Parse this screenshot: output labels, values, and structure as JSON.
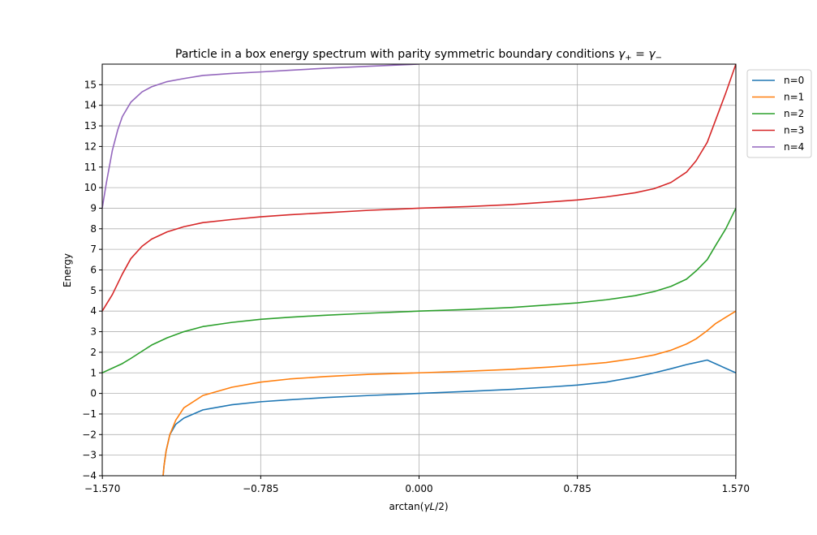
{
  "chart_data": {
    "type": "line",
    "title_main": "Particle in a box energy spectrum with parity symmetric boundary conditions ",
    "title_math": "γ+ = γ−",
    "xlabel_prefix": "arctan(",
    "xlabel_var": "γL",
    "xlabel_suffix": "/2)",
    "ylabel": "Energy",
    "xlim": [
      -1.5708,
      1.5708
    ],
    "ylim": [
      -4,
      16
    ],
    "x_ticks": [
      -1.57,
      -0.785,
      0.0,
      0.785,
      1.57
    ],
    "x_tick_labels": [
      "−1.570",
      "−0.785",
      "0.000",
      "0.785",
      "1.570"
    ],
    "y_ticks": [
      -4,
      -3,
      -2,
      -1,
      0,
      1,
      2,
      3,
      4,
      5,
      6,
      7,
      8,
      9,
      10,
      11,
      12,
      13,
      14,
      15
    ],
    "y_tick_labels": [
      "−4",
      "−3",
      "−2",
      "−1",
      "0",
      "1",
      "2",
      "3",
      "4",
      "5",
      "6",
      "7",
      "8",
      "9",
      "10",
      "11",
      "12",
      "13",
      "14",
      "15"
    ],
    "grid": true,
    "legend_position": "outside-top-right",
    "series": [
      {
        "name": "n=0",
        "color": "#1f77b4",
        "points": [
          [
            -1.2737,
            -4.5
          ],
          [
            -1.2642,
            -3.5
          ],
          [
            -1.2541,
            -2.8
          ],
          [
            -1.2355,
            -2.0
          ],
          [
            -1.2062,
            -1.5
          ],
          [
            -1.1659,
            -1.2
          ],
          [
            -1.0715,
            -0.8
          ],
          [
            -0.9281,
            -0.55
          ],
          [
            -0.7854,
            -0.405
          ],
          [
            -0.6435,
            -0.31
          ],
          [
            -0.4636,
            -0.2
          ],
          [
            -0.245,
            -0.1
          ],
          [
            0.0,
            0.0
          ],
          [
            0.245,
            0.1
          ],
          [
            0.4636,
            0.2
          ],
          [
            0.6435,
            0.31
          ],
          [
            0.7854,
            0.405
          ],
          [
            0.9281,
            0.55
          ],
          [
            1.0715,
            0.8
          ],
          [
            1.1659,
            1.0
          ],
          [
            1.249,
            1.2
          ],
          [
            1.3258,
            1.4
          ],
          [
            1.3734,
            1.5
          ],
          [
            1.4289,
            1.62
          ],
          [
            1.5708,
            1.0
          ]
        ]
      },
      {
        "name": "n=1",
        "color": "#ff7f0e",
        "points": [
          [
            -1.2737,
            -4.5
          ],
          [
            -1.2642,
            -3.5
          ],
          [
            -1.2541,
            -2.8
          ],
          [
            -1.2355,
            -2.0
          ],
          [
            -1.2062,
            -1.3
          ],
          [
            -1.1659,
            -0.7
          ],
          [
            -1.0715,
            -0.1
          ],
          [
            -0.9281,
            0.3
          ],
          [
            -0.7854,
            0.55
          ],
          [
            -0.6435,
            0.7
          ],
          [
            -0.4636,
            0.82
          ],
          [
            -0.245,
            0.93
          ],
          [
            0.0,
            1.0
          ],
          [
            0.245,
            1.08
          ],
          [
            0.4636,
            1.17
          ],
          [
            0.6435,
            1.28
          ],
          [
            0.7854,
            1.38
          ],
          [
            0.9281,
            1.5
          ],
          [
            1.0715,
            1.7
          ],
          [
            1.1659,
            1.87
          ],
          [
            1.249,
            2.1
          ],
          [
            1.3258,
            2.4
          ],
          [
            1.3734,
            2.65
          ],
          [
            1.4289,
            3.05
          ],
          [
            1.4711,
            3.4
          ],
          [
            1.5708,
            4.0
          ]
        ]
      },
      {
        "name": "n=2",
        "color": "#2ca02c",
        "points": [
          [
            -1.5708,
            1.0
          ],
          [
            -1.4711,
            1.45
          ],
          [
            -1.4289,
            1.7
          ],
          [
            -1.3734,
            2.05
          ],
          [
            -1.3258,
            2.35
          ],
          [
            -1.249,
            2.7
          ],
          [
            -1.1659,
            3.0
          ],
          [
            -1.0715,
            3.25
          ],
          [
            -0.9281,
            3.45
          ],
          [
            -0.7854,
            3.6
          ],
          [
            -0.6435,
            3.7
          ],
          [
            -0.4636,
            3.8
          ],
          [
            -0.245,
            3.9
          ],
          [
            0.0,
            4.0
          ],
          [
            0.245,
            4.08
          ],
          [
            0.4636,
            4.18
          ],
          [
            0.6435,
            4.3
          ],
          [
            0.7854,
            4.4
          ],
          [
            0.9281,
            4.55
          ],
          [
            1.0715,
            4.75
          ],
          [
            1.1659,
            4.95
          ],
          [
            1.249,
            5.2
          ],
          [
            1.3258,
            5.55
          ],
          [
            1.3734,
            5.95
          ],
          [
            1.4289,
            6.5
          ],
          [
            1.4711,
            7.2
          ],
          [
            1.5208,
            8.0
          ],
          [
            1.5708,
            9.0
          ]
        ]
      },
      {
        "name": "n=3",
        "color": "#d62728",
        "points": [
          [
            -1.5708,
            4.0
          ],
          [
            -1.5208,
            4.8
          ],
          [
            -1.4711,
            5.8
          ],
          [
            -1.4289,
            6.55
          ],
          [
            -1.3734,
            7.15
          ],
          [
            -1.3258,
            7.5
          ],
          [
            -1.249,
            7.85
          ],
          [
            -1.1659,
            8.1
          ],
          [
            -1.0715,
            8.3
          ],
          [
            -0.9281,
            8.45
          ],
          [
            -0.7854,
            8.58
          ],
          [
            -0.6435,
            8.68
          ],
          [
            -0.4636,
            8.78
          ],
          [
            -0.245,
            8.9
          ],
          [
            0.0,
            9.0
          ],
          [
            0.245,
            9.08
          ],
          [
            0.4636,
            9.18
          ],
          [
            0.6435,
            9.3
          ],
          [
            0.7854,
            9.4
          ],
          [
            0.9281,
            9.55
          ],
          [
            1.0715,
            9.75
          ],
          [
            1.1659,
            9.95
          ],
          [
            1.249,
            10.25
          ],
          [
            1.3258,
            10.75
          ],
          [
            1.3734,
            11.3
          ],
          [
            1.4289,
            12.2
          ],
          [
            1.4711,
            13.3
          ],
          [
            1.5208,
            14.6
          ],
          [
            1.5708,
            16.0
          ]
        ]
      },
      {
        "name": "n=4",
        "color": "#9467bd",
        "points": [
          [
            -1.5708,
            9.0
          ],
          [
            -1.5508,
            10.2
          ],
          [
            -1.5208,
            11.8
          ],
          [
            -1.494,
            12.8
          ],
          [
            -1.4711,
            13.45
          ],
          [
            -1.4289,
            14.15
          ],
          [
            -1.3734,
            14.65
          ],
          [
            -1.3258,
            14.9
          ],
          [
            -1.249,
            15.15
          ],
          [
            -1.1659,
            15.3
          ],
          [
            -1.0715,
            15.45
          ],
          [
            -0.9281,
            15.55
          ],
          [
            -0.7854,
            15.62
          ],
          [
            -0.6435,
            15.7
          ],
          [
            -0.4636,
            15.8
          ],
          [
            -0.245,
            15.9
          ],
          [
            0.0,
            16.0
          ]
        ]
      }
    ]
  }
}
